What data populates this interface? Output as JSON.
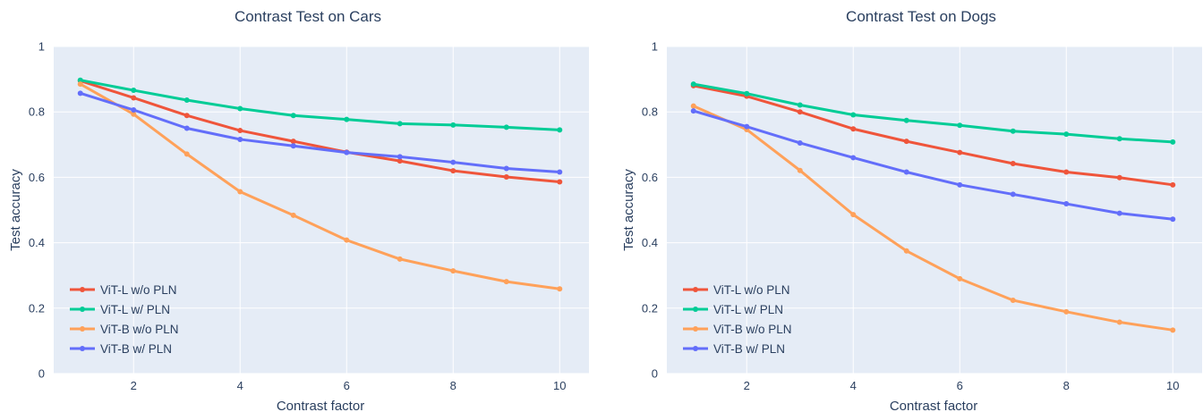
{
  "chart_data": [
    {
      "type": "line",
      "title": "Contrast Test on Cars",
      "xlabel": "Contrast factor",
      "ylabel": "Test accuracy",
      "xlim": [
        0.5,
        10.55
      ],
      "ylim": [
        0,
        1
      ],
      "xticks": [
        2,
        4,
        6,
        8,
        10
      ],
      "yticks": [
        0,
        0.2,
        0.4,
        0.6,
        0.8,
        1
      ],
      "ytick_labels": [
        "0",
        "0.2",
        "0.4",
        "0.6",
        "0.8",
        "1"
      ],
      "grid": true,
      "legend_position": "bottom-left",
      "x": [
        1,
        2,
        3,
        4,
        5,
        6,
        7,
        8,
        9,
        10
      ],
      "series": [
        {
          "name": "ViT-L w/o PLN",
          "color": "#EF553B",
          "values": [
            0.895,
            0.843,
            0.789,
            0.743,
            0.71,
            0.677,
            0.65,
            0.62,
            0.601,
            0.586
          ]
        },
        {
          "name": "ViT-L w/ PLN",
          "color": "#00CC96",
          "values": [
            0.897,
            0.866,
            0.836,
            0.81,
            0.789,
            0.777,
            0.764,
            0.76,
            0.753,
            0.745
          ]
        },
        {
          "name": "ViT-B w/o PLN",
          "color": "#FFA15A",
          "values": [
            0.885,
            0.793,
            0.671,
            0.556,
            0.484,
            0.408,
            0.35,
            0.314,
            0.281,
            0.259
          ]
        },
        {
          "name": "ViT-B w/ PLN",
          "color": "#636EFA",
          "values": [
            0.857,
            0.806,
            0.75,
            0.716,
            0.696,
            0.676,
            0.663,
            0.646,
            0.627,
            0.616
          ]
        }
      ]
    },
    {
      "type": "line",
      "title": "Contrast Test on Dogs",
      "xlabel": "Contrast factor",
      "ylabel": "Test accuracy",
      "xlim": [
        0.5,
        10.55
      ],
      "ylim": [
        0,
        1
      ],
      "xticks": [
        2,
        4,
        6,
        8,
        10
      ],
      "yticks": [
        0,
        0.2,
        0.4,
        0.6,
        0.8,
        1
      ],
      "ytick_labels": [
        "0",
        "0.2",
        "0.4",
        "0.6",
        "0.8",
        "1"
      ],
      "grid": true,
      "legend_position": "bottom-left",
      "x": [
        1,
        2,
        3,
        4,
        5,
        6,
        7,
        8,
        9,
        10
      ],
      "series": [
        {
          "name": "ViT-L w/o PLN",
          "color": "#EF553B",
          "values": [
            0.88,
            0.848,
            0.8,
            0.748,
            0.71,
            0.676,
            0.642,
            0.616,
            0.599,
            0.577
          ]
        },
        {
          "name": "ViT-L w/ PLN",
          "color": "#00CC96",
          "values": [
            0.885,
            0.856,
            0.821,
            0.791,
            0.774,
            0.759,
            0.741,
            0.732,
            0.718,
            0.708
          ]
        },
        {
          "name": "ViT-B w/o PLN",
          "color": "#FFA15A",
          "values": [
            0.818,
            0.746,
            0.621,
            0.486,
            0.375,
            0.29,
            0.224,
            0.189,
            0.157,
            0.133
          ]
        },
        {
          "name": "ViT-B w/ PLN",
          "color": "#636EFA",
          "values": [
            0.803,
            0.755,
            0.705,
            0.66,
            0.616,
            0.577,
            0.548,
            0.519,
            0.49,
            0.472
          ]
        }
      ]
    }
  ]
}
